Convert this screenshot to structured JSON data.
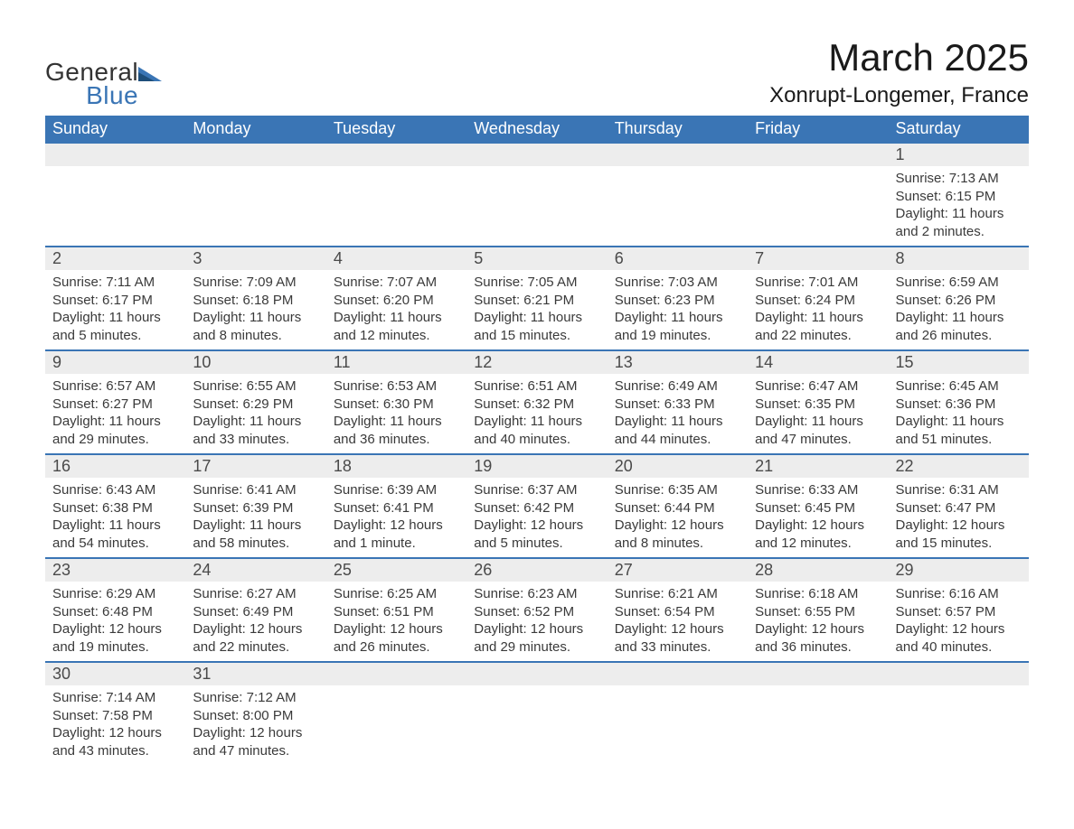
{
  "logo": {
    "line1": "General",
    "line2": "Blue",
    "accent_color": "#3a75b5"
  },
  "title": "March 2025",
  "location": "Xonrupt-Longemer, France",
  "colors": {
    "header_bg": "#3a75b5",
    "header_fg": "#ffffff",
    "daynum_bg": "#ededed",
    "text": "#3a3a3a",
    "border": "#3a75b5"
  },
  "weekdays": [
    "Sunday",
    "Monday",
    "Tuesday",
    "Wednesday",
    "Thursday",
    "Friday",
    "Saturday"
  ],
  "weeks": [
    [
      null,
      null,
      null,
      null,
      null,
      null,
      {
        "n": "1",
        "sr": "Sunrise: 7:13 AM",
        "ss": "Sunset: 6:15 PM",
        "d1": "Daylight: 11 hours",
        "d2": "and 2 minutes."
      }
    ],
    [
      {
        "n": "2",
        "sr": "Sunrise: 7:11 AM",
        "ss": "Sunset: 6:17 PM",
        "d1": "Daylight: 11 hours",
        "d2": "and 5 minutes."
      },
      {
        "n": "3",
        "sr": "Sunrise: 7:09 AM",
        "ss": "Sunset: 6:18 PM",
        "d1": "Daylight: 11 hours",
        "d2": "and 8 minutes."
      },
      {
        "n": "4",
        "sr": "Sunrise: 7:07 AM",
        "ss": "Sunset: 6:20 PM",
        "d1": "Daylight: 11 hours",
        "d2": "and 12 minutes."
      },
      {
        "n": "5",
        "sr": "Sunrise: 7:05 AM",
        "ss": "Sunset: 6:21 PM",
        "d1": "Daylight: 11 hours",
        "d2": "and 15 minutes."
      },
      {
        "n": "6",
        "sr": "Sunrise: 7:03 AM",
        "ss": "Sunset: 6:23 PM",
        "d1": "Daylight: 11 hours",
        "d2": "and 19 minutes."
      },
      {
        "n": "7",
        "sr": "Sunrise: 7:01 AM",
        "ss": "Sunset: 6:24 PM",
        "d1": "Daylight: 11 hours",
        "d2": "and 22 minutes."
      },
      {
        "n": "8",
        "sr": "Sunrise: 6:59 AM",
        "ss": "Sunset: 6:26 PM",
        "d1": "Daylight: 11 hours",
        "d2": "and 26 minutes."
      }
    ],
    [
      {
        "n": "9",
        "sr": "Sunrise: 6:57 AM",
        "ss": "Sunset: 6:27 PM",
        "d1": "Daylight: 11 hours",
        "d2": "and 29 minutes."
      },
      {
        "n": "10",
        "sr": "Sunrise: 6:55 AM",
        "ss": "Sunset: 6:29 PM",
        "d1": "Daylight: 11 hours",
        "d2": "and 33 minutes."
      },
      {
        "n": "11",
        "sr": "Sunrise: 6:53 AM",
        "ss": "Sunset: 6:30 PM",
        "d1": "Daylight: 11 hours",
        "d2": "and 36 minutes."
      },
      {
        "n": "12",
        "sr": "Sunrise: 6:51 AM",
        "ss": "Sunset: 6:32 PM",
        "d1": "Daylight: 11 hours",
        "d2": "and 40 minutes."
      },
      {
        "n": "13",
        "sr": "Sunrise: 6:49 AM",
        "ss": "Sunset: 6:33 PM",
        "d1": "Daylight: 11 hours",
        "d2": "and 44 minutes."
      },
      {
        "n": "14",
        "sr": "Sunrise: 6:47 AM",
        "ss": "Sunset: 6:35 PM",
        "d1": "Daylight: 11 hours",
        "d2": "and 47 minutes."
      },
      {
        "n": "15",
        "sr": "Sunrise: 6:45 AM",
        "ss": "Sunset: 6:36 PM",
        "d1": "Daylight: 11 hours",
        "d2": "and 51 minutes."
      }
    ],
    [
      {
        "n": "16",
        "sr": "Sunrise: 6:43 AM",
        "ss": "Sunset: 6:38 PM",
        "d1": "Daylight: 11 hours",
        "d2": "and 54 minutes."
      },
      {
        "n": "17",
        "sr": "Sunrise: 6:41 AM",
        "ss": "Sunset: 6:39 PM",
        "d1": "Daylight: 11 hours",
        "d2": "and 58 minutes."
      },
      {
        "n": "18",
        "sr": "Sunrise: 6:39 AM",
        "ss": "Sunset: 6:41 PM",
        "d1": "Daylight: 12 hours",
        "d2": "and 1 minute."
      },
      {
        "n": "19",
        "sr": "Sunrise: 6:37 AM",
        "ss": "Sunset: 6:42 PM",
        "d1": "Daylight: 12 hours",
        "d2": "and 5 minutes."
      },
      {
        "n": "20",
        "sr": "Sunrise: 6:35 AM",
        "ss": "Sunset: 6:44 PM",
        "d1": "Daylight: 12 hours",
        "d2": "and 8 minutes."
      },
      {
        "n": "21",
        "sr": "Sunrise: 6:33 AM",
        "ss": "Sunset: 6:45 PM",
        "d1": "Daylight: 12 hours",
        "d2": "and 12 minutes."
      },
      {
        "n": "22",
        "sr": "Sunrise: 6:31 AM",
        "ss": "Sunset: 6:47 PM",
        "d1": "Daylight: 12 hours",
        "d2": "and 15 minutes."
      }
    ],
    [
      {
        "n": "23",
        "sr": "Sunrise: 6:29 AM",
        "ss": "Sunset: 6:48 PM",
        "d1": "Daylight: 12 hours",
        "d2": "and 19 minutes."
      },
      {
        "n": "24",
        "sr": "Sunrise: 6:27 AM",
        "ss": "Sunset: 6:49 PM",
        "d1": "Daylight: 12 hours",
        "d2": "and 22 minutes."
      },
      {
        "n": "25",
        "sr": "Sunrise: 6:25 AM",
        "ss": "Sunset: 6:51 PM",
        "d1": "Daylight: 12 hours",
        "d2": "and 26 minutes."
      },
      {
        "n": "26",
        "sr": "Sunrise: 6:23 AM",
        "ss": "Sunset: 6:52 PM",
        "d1": "Daylight: 12 hours",
        "d2": "and 29 minutes."
      },
      {
        "n": "27",
        "sr": "Sunrise: 6:21 AM",
        "ss": "Sunset: 6:54 PM",
        "d1": "Daylight: 12 hours",
        "d2": "and 33 minutes."
      },
      {
        "n": "28",
        "sr": "Sunrise: 6:18 AM",
        "ss": "Sunset: 6:55 PM",
        "d1": "Daylight: 12 hours",
        "d2": "and 36 minutes."
      },
      {
        "n": "29",
        "sr": "Sunrise: 6:16 AM",
        "ss": "Sunset: 6:57 PM",
        "d1": "Daylight: 12 hours",
        "d2": "and 40 minutes."
      }
    ],
    [
      {
        "n": "30",
        "sr": "Sunrise: 7:14 AM",
        "ss": "Sunset: 7:58 PM",
        "d1": "Daylight: 12 hours",
        "d2": "and 43 minutes."
      },
      {
        "n": "31",
        "sr": "Sunrise: 7:12 AM",
        "ss": "Sunset: 8:00 PM",
        "d1": "Daylight: 12 hours",
        "d2": "and 47 minutes."
      },
      null,
      null,
      null,
      null,
      null
    ]
  ]
}
